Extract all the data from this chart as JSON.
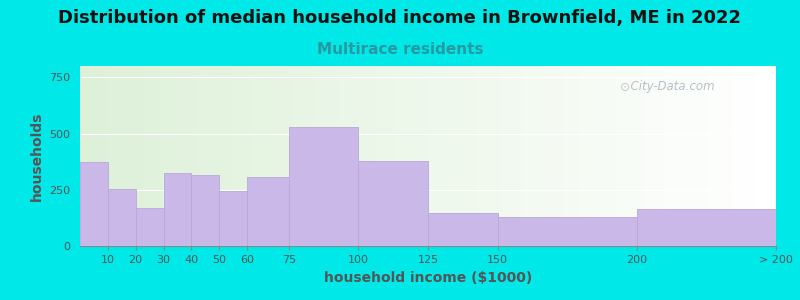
{
  "title": "Distribution of median household income in Brownfield, ME in 2022",
  "subtitle": "Multirace residents",
  "xlabel": "household income ($1000)",
  "ylabel": "households",
  "bar_color": "#c9b8e8",
  "bar_edge_color": "#b8a8d8",
  "background_outer": "#00e8e8",
  "background_inner_left": "#ddf0d8",
  "background_inner_right": "#f8f8f8",
  "title_fontsize": 13,
  "subtitle_fontsize": 11,
  "subtitle_color": "#2899a0",
  "ylabel_color": "#555555",
  "xlabel_color": "#555555",
  "tick_label_color": "#555555",
  "bin_edges": [
    0,
    10,
    20,
    30,
    40,
    50,
    60,
    75,
    100,
    125,
    150,
    200,
    250
  ],
  "bin_labels": [
    "10",
    "20",
    "30",
    "40",
    "50",
    "60",
    "75",
    "100",
    "125",
    "150",
    "200",
    "> 200"
  ],
  "values": [
    375,
    255,
    170,
    325,
    315,
    245,
    305,
    530,
    380,
    145,
    130,
    165
  ],
  "ylim": [
    0,
    800
  ],
  "yticks": [
    0,
    250,
    500,
    750
  ],
  "watermark": "City-Data.com"
}
